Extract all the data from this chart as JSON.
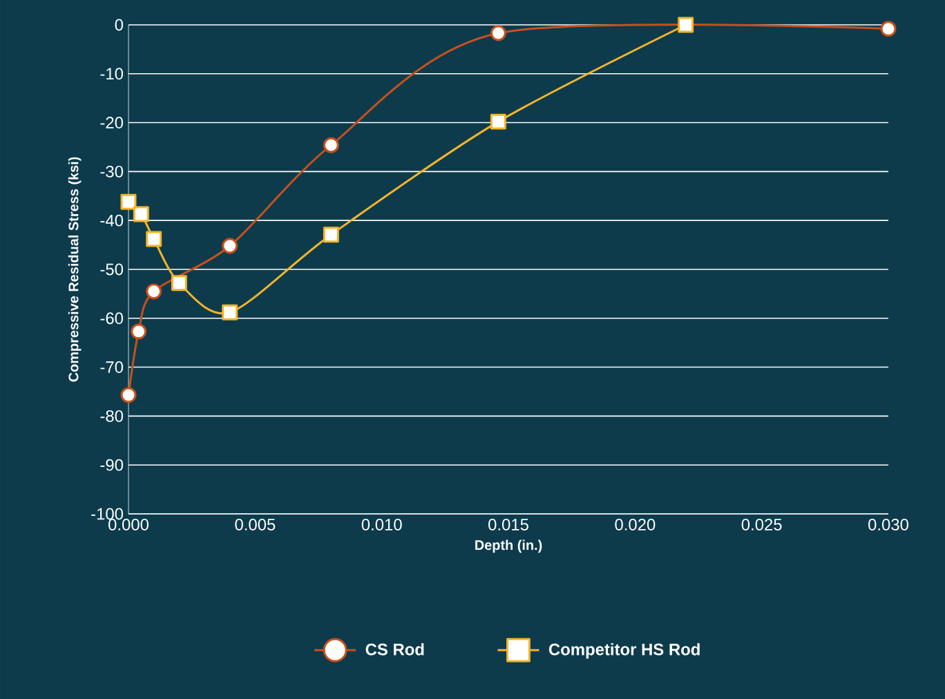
{
  "chart_data": {
    "type": "line",
    "xlabel": "Depth (in.)",
    "ylabel": "Compressive Residual Stress (ksi)",
    "xlim": [
      0,
      0.03
    ],
    "ylim": [
      -100,
      0
    ],
    "xticks": [
      {
        "value": 0,
        "label": "0.000"
      },
      {
        "value": 0.005,
        "label": "0.005"
      },
      {
        "value": 0.01,
        "label": "0.010"
      },
      {
        "value": 0.015,
        "label": "0.015"
      },
      {
        "value": 0.02,
        "label": "0.020"
      },
      {
        "value": 0.025,
        "label": "0.025"
      },
      {
        "value": 0.03,
        "label": "0.030"
      }
    ],
    "yticks": [
      -100,
      -90,
      -80,
      -70,
      -60,
      -50,
      -40,
      -30,
      -20,
      -10,
      0
    ],
    "grid": "y",
    "legend": "bottom",
    "series": [
      {
        "name": "CS Rod",
        "color": "#c8501a",
        "marker": "circle",
        "x": [
          0,
          0.0004,
          0.001,
          0.004,
          0.008,
          0.0146,
          0.03
        ],
        "values": [
          -75.7,
          -62.7,
          -54.5,
          -45.2,
          -24.6,
          -1.7,
          -0.8
        ]
      },
      {
        "name": "Competitor HS Rod",
        "color": "#f5b52a",
        "marker": "square",
        "x": [
          0,
          0.0005,
          0.001,
          0.002,
          0.004,
          0.008,
          0.0146,
          0.022
        ],
        "values": [
          -36.2,
          -38.7,
          -43.8,
          -52.8,
          -58.8,
          -42.9,
          -19.8,
          0
        ]
      }
    ]
  }
}
